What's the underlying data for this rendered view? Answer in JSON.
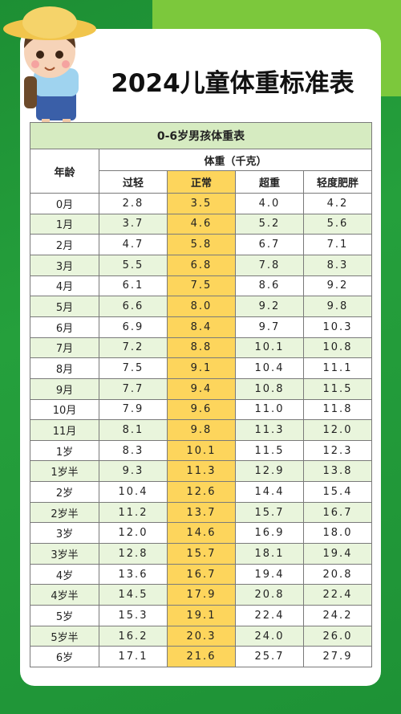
{
  "header": {
    "title": "2024儿童体重标准表"
  },
  "table": {
    "caption": "0-6岁男孩体重表",
    "age_header": "年龄",
    "weight_header": "体重（千克）",
    "columns": [
      "过轻",
      "正常",
      "超重",
      "轻度肥胖"
    ],
    "rows": [
      [
        "0月",
        "2.8",
        "3.5",
        "4.0",
        "4.2"
      ],
      [
        "1月",
        "3.7",
        "4.6",
        "5.2",
        "5.6"
      ],
      [
        "2月",
        "4.7",
        "5.8",
        "6.7",
        "7.1"
      ],
      [
        "3月",
        "5.5",
        "6.8",
        "7.8",
        "8.3"
      ],
      [
        "4月",
        "6.1",
        "7.5",
        "8.6",
        "9.2"
      ],
      [
        "5月",
        "6.6",
        "8.0",
        "9.2",
        "9.8"
      ],
      [
        "6月",
        "6.9",
        "8.4",
        "9.7",
        "10.3"
      ],
      [
        "7月",
        "7.2",
        "8.8",
        "10.1",
        "10.8"
      ],
      [
        "8月",
        "7.5",
        "9.1",
        "10.4",
        "11.1"
      ],
      [
        "9月",
        "7.7",
        "9.4",
        "10.8",
        "11.5"
      ],
      [
        "10月",
        "7.9",
        "9.6",
        "11.0",
        "11.8"
      ],
      [
        "11月",
        "8.1",
        "9.8",
        "11.3",
        "12.0"
      ],
      [
        "1岁",
        "8.3",
        "10.1",
        "11.5",
        "12.3"
      ],
      [
        "1岁半",
        "9.3",
        "11.3",
        "12.9",
        "13.8"
      ],
      [
        "2岁",
        "10.4",
        "12.6",
        "14.4",
        "15.4"
      ],
      [
        "2岁半",
        "11.2",
        "13.7",
        "15.7",
        "16.7"
      ],
      [
        "3岁",
        "12.0",
        "14.6",
        "16.9",
        "18.0"
      ],
      [
        "3岁半",
        "12.8",
        "15.7",
        "18.1",
        "19.4"
      ],
      [
        "4岁",
        "13.6",
        "16.7",
        "19.4",
        "20.8"
      ],
      [
        "4岁半",
        "14.5",
        "17.9",
        "20.8",
        "22.4"
      ],
      [
        "5岁",
        "15.3",
        "19.1",
        "22.4",
        "24.2"
      ],
      [
        "5岁半",
        "16.2",
        "20.3",
        "24.0",
        "26.0"
      ],
      [
        "6岁",
        "17.1",
        "21.6",
        "25.7",
        "27.9"
      ]
    ]
  }
}
